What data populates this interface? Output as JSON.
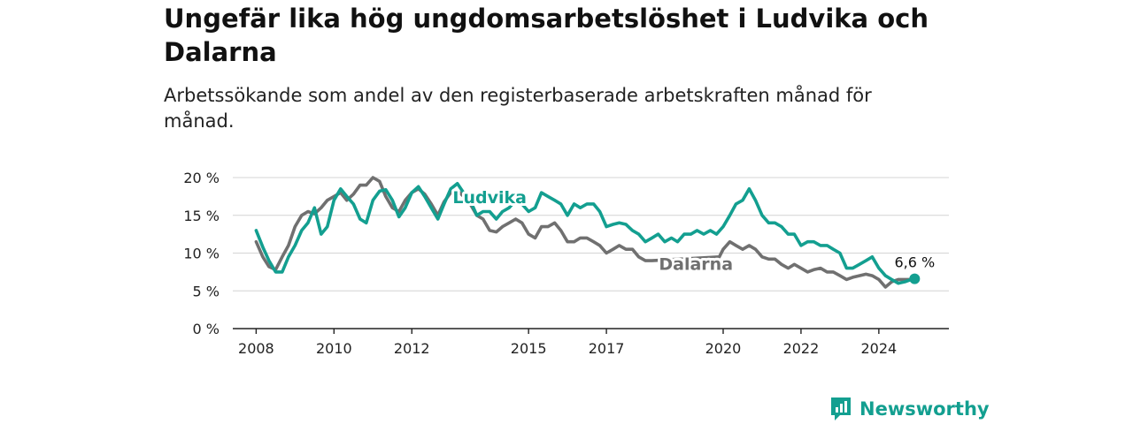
{
  "header": {
    "title": "Ungefär lika hög ungdomsarbetslöshet i Ludvika och Dalarna",
    "subtitle": "Arbetssökande som andel av den registerbaserade arbetskraften månad för månad."
  },
  "brand": {
    "name": "Newsworthy",
    "icon": "newsworthy-logo-icon",
    "color": "#139f90"
  },
  "chart_data": {
    "type": "line",
    "title": "Ungefär lika hög ungdomsarbetslöshet i Ludvika och Dalarna",
    "subtitle": "Arbetssökande som andel av den registerbaserade arbetskraften månad för månad.",
    "xlabel": "",
    "ylabel": "",
    "xlim": [
      2007.4,
      2025.8
    ],
    "ylim": [
      0,
      20
    ],
    "x_ticks": [
      {
        "value": 2008,
        "label": "2008"
      },
      {
        "value": 2010,
        "label": "2010"
      },
      {
        "value": 2012,
        "label": "2012"
      },
      {
        "value": 2015,
        "label": "2015"
      },
      {
        "value": 2017,
        "label": "2017"
      },
      {
        "value": 2020,
        "label": "2020"
      },
      {
        "value": 2022,
        "label": "2022"
      },
      {
        "value": 2024,
        "label": "2024"
      }
    ],
    "y_ticks": [
      {
        "value": 0,
        "label": "0 %"
      },
      {
        "value": 5,
        "label": "5 %"
      },
      {
        "value": 10,
        "label": "10 %"
      },
      {
        "value": 15,
        "label": "15 %"
      },
      {
        "value": 20,
        "label": "20 %"
      }
    ],
    "grid": true,
    "end_annotation": {
      "series": "Ludvika",
      "x": 2024.92,
      "y": 6.6,
      "label": "6,6 %"
    },
    "series": [
      {
        "name": "Ludvika",
        "color": "#139f90",
        "label_anchor": {
          "x": 2014.0,
          "y": 16.6
        },
        "points": [
          [
            2008.0,
            13.0
          ],
          [
            2008.17,
            10.8
          ],
          [
            2008.33,
            9.0
          ],
          [
            2008.5,
            7.5
          ],
          [
            2008.67,
            7.5
          ],
          [
            2008.83,
            9.5
          ],
          [
            2009.0,
            11.0
          ],
          [
            2009.17,
            13.0
          ],
          [
            2009.33,
            14.0
          ],
          [
            2009.5,
            16.0
          ],
          [
            2009.67,
            12.5
          ],
          [
            2009.83,
            13.5
          ],
          [
            2010.0,
            17.0
          ],
          [
            2010.17,
            18.5
          ],
          [
            2010.33,
            17.5
          ],
          [
            2010.5,
            16.5
          ],
          [
            2010.67,
            14.5
          ],
          [
            2010.83,
            14.0
          ],
          [
            2011.0,
            17.0
          ],
          [
            2011.17,
            18.2
          ],
          [
            2011.33,
            18.4
          ],
          [
            2011.5,
            17.0
          ],
          [
            2011.67,
            14.8
          ],
          [
            2011.83,
            16.0
          ],
          [
            2012.0,
            18.0
          ],
          [
            2012.17,
            18.8
          ],
          [
            2012.33,
            17.5
          ],
          [
            2012.5,
            16.0
          ],
          [
            2012.67,
            14.5
          ],
          [
            2012.83,
            16.5
          ],
          [
            2013.0,
            18.5
          ],
          [
            2013.17,
            19.2
          ],
          [
            2013.33,
            18.0
          ],
          [
            2013.5,
            17.0
          ],
          [
            2013.67,
            15.0
          ],
          [
            2013.83,
            15.5
          ],
          [
            2014.0,
            15.5
          ],
          [
            2014.17,
            14.5
          ],
          [
            2014.33,
            15.5
          ],
          [
            2014.5,
            16.0
          ],
          [
            2014.67,
            17.0
          ],
          [
            2014.83,
            16.5
          ],
          [
            2015.0,
            15.5
          ],
          [
            2015.17,
            16.0
          ],
          [
            2015.33,
            18.0
          ],
          [
            2015.5,
            17.5
          ],
          [
            2015.67,
            17.0
          ],
          [
            2015.83,
            16.5
          ],
          [
            2016.0,
            15.0
          ],
          [
            2016.17,
            16.5
          ],
          [
            2016.33,
            16.0
          ],
          [
            2016.5,
            16.5
          ],
          [
            2016.67,
            16.5
          ],
          [
            2016.83,
            15.5
          ],
          [
            2017.0,
            13.5
          ],
          [
            2017.17,
            13.8
          ],
          [
            2017.33,
            14.0
          ],
          [
            2017.5,
            13.8
          ],
          [
            2017.67,
            13.0
          ],
          [
            2017.83,
            12.5
          ],
          [
            2018.0,
            11.5
          ],
          [
            2018.17,
            12.0
          ],
          [
            2018.33,
            12.5
          ],
          [
            2018.5,
            11.5
          ],
          [
            2018.67,
            12.0
          ],
          [
            2018.83,
            11.5
          ],
          [
            2019.0,
            12.5
          ],
          [
            2019.17,
            12.5
          ],
          [
            2019.33,
            13.0
          ],
          [
            2019.5,
            12.5
          ],
          [
            2019.67,
            13.0
          ],
          [
            2019.83,
            12.5
          ],
          [
            2020.0,
            13.5
          ],
          [
            2020.17,
            15.0
          ],
          [
            2020.33,
            16.5
          ],
          [
            2020.5,
            17.0
          ],
          [
            2020.67,
            18.5
          ],
          [
            2020.83,
            17.0
          ],
          [
            2021.0,
            15.0
          ],
          [
            2021.17,
            14.0
          ],
          [
            2021.33,
            14.0
          ],
          [
            2021.5,
            13.5
          ],
          [
            2021.67,
            12.5
          ],
          [
            2021.83,
            12.5
          ],
          [
            2022.0,
            11.0
          ],
          [
            2022.17,
            11.5
          ],
          [
            2022.33,
            11.5
          ],
          [
            2022.5,
            11.0
          ],
          [
            2022.67,
            11.0
          ],
          [
            2022.83,
            10.5
          ],
          [
            2023.0,
            10.0
          ],
          [
            2023.17,
            8.0
          ],
          [
            2023.33,
            8.0
          ],
          [
            2023.5,
            8.5
          ],
          [
            2023.67,
            9.0
          ],
          [
            2023.83,
            9.5
          ],
          [
            2024.0,
            8.0
          ],
          [
            2024.17,
            7.0
          ],
          [
            2024.33,
            6.5
          ],
          [
            2024.5,
            6.0
          ],
          [
            2024.67,
            6.2
          ],
          [
            2024.83,
            6.5
          ],
          [
            2024.92,
            6.6
          ]
        ]
      },
      {
        "name": "Dalarna",
        "color": "#707070",
        "label_anchor": {
          "x": 2019.3,
          "y": 7.8
        },
        "points": [
          [
            2008.0,
            11.5
          ],
          [
            2008.17,
            9.5
          ],
          [
            2008.33,
            8.2
          ],
          [
            2008.5,
            7.8
          ],
          [
            2008.67,
            9.5
          ],
          [
            2008.83,
            11.0
          ],
          [
            2009.0,
            13.5
          ],
          [
            2009.17,
            15.0
          ],
          [
            2009.33,
            15.5
          ],
          [
            2009.5,
            15.2
          ],
          [
            2009.67,
            16.0
          ],
          [
            2009.83,
            17.0
          ],
          [
            2010.0,
            17.5
          ],
          [
            2010.17,
            18.0
          ],
          [
            2010.33,
            17.0
          ],
          [
            2010.5,
            17.8
          ],
          [
            2010.67,
            19.0
          ],
          [
            2010.83,
            19.0
          ],
          [
            2011.0,
            20.0
          ],
          [
            2011.17,
            19.5
          ],
          [
            2011.33,
            17.5
          ],
          [
            2011.5,
            16.0
          ],
          [
            2011.67,
            15.5
          ],
          [
            2011.83,
            17.0
          ],
          [
            2012.0,
            18.0
          ],
          [
            2012.17,
            18.5
          ],
          [
            2012.33,
            17.8
          ],
          [
            2012.5,
            16.5
          ],
          [
            2012.67,
            15.0
          ],
          [
            2012.83,
            16.8
          ],
          [
            2013.0,
            18.0
          ],
          [
            2013.17,
            18.3
          ],
          [
            2013.33,
            17.5
          ],
          [
            2013.5,
            16.5
          ],
          [
            2013.67,
            15.0
          ],
          [
            2013.83,
            14.5
          ],
          [
            2014.0,
            13.0
          ],
          [
            2014.17,
            12.8
          ],
          [
            2014.33,
            13.5
          ],
          [
            2014.5,
            14.0
          ],
          [
            2014.67,
            14.5
          ],
          [
            2014.83,
            14.0
          ],
          [
            2015.0,
            12.5
          ],
          [
            2015.17,
            12.0
          ],
          [
            2015.33,
            13.5
          ],
          [
            2015.5,
            13.5
          ],
          [
            2015.67,
            14.0
          ],
          [
            2015.83,
            13.0
          ],
          [
            2016.0,
            11.5
          ],
          [
            2016.17,
            11.5
          ],
          [
            2016.33,
            12.0
          ],
          [
            2016.5,
            12.0
          ],
          [
            2016.67,
            11.5
          ],
          [
            2016.83,
            11.0
          ],
          [
            2017.0,
            10.0
          ],
          [
            2017.17,
            10.5
          ],
          [
            2017.33,
            11.0
          ],
          [
            2017.5,
            10.5
          ],
          [
            2017.67,
            10.5
          ],
          [
            2017.83,
            9.5
          ],
          [
            2018.0,
            9.0
          ],
          [
            2018.17,
            9.0
          ],
          [
            2019.9,
            9.5
          ],
          [
            2020.0,
            10.5
          ],
          [
            2020.17,
            11.5
          ],
          [
            2020.33,
            11.0
          ],
          [
            2020.5,
            10.5
          ],
          [
            2020.67,
            11.0
          ],
          [
            2020.83,
            10.5
          ],
          [
            2021.0,
            9.5
          ],
          [
            2021.17,
            9.2
          ],
          [
            2021.33,
            9.2
          ],
          [
            2021.5,
            8.5
          ],
          [
            2021.67,
            8.0
          ],
          [
            2021.83,
            8.5
          ],
          [
            2022.0,
            8.0
          ],
          [
            2022.17,
            7.5
          ],
          [
            2022.33,
            7.8
          ],
          [
            2022.5,
            8.0
          ],
          [
            2022.67,
            7.5
          ],
          [
            2022.83,
            7.5
          ],
          [
            2023.0,
            7.0
          ],
          [
            2023.17,
            6.5
          ],
          [
            2023.33,
            6.8
          ],
          [
            2023.5,
            7.0
          ],
          [
            2023.67,
            7.2
          ],
          [
            2023.83,
            7.0
          ],
          [
            2024.0,
            6.5
          ],
          [
            2024.17,
            5.5
          ],
          [
            2024.33,
            6.2
          ],
          [
            2024.5,
            6.5
          ],
          [
            2024.67,
            6.5
          ],
          [
            2024.83,
            6.5
          ]
        ]
      }
    ]
  }
}
